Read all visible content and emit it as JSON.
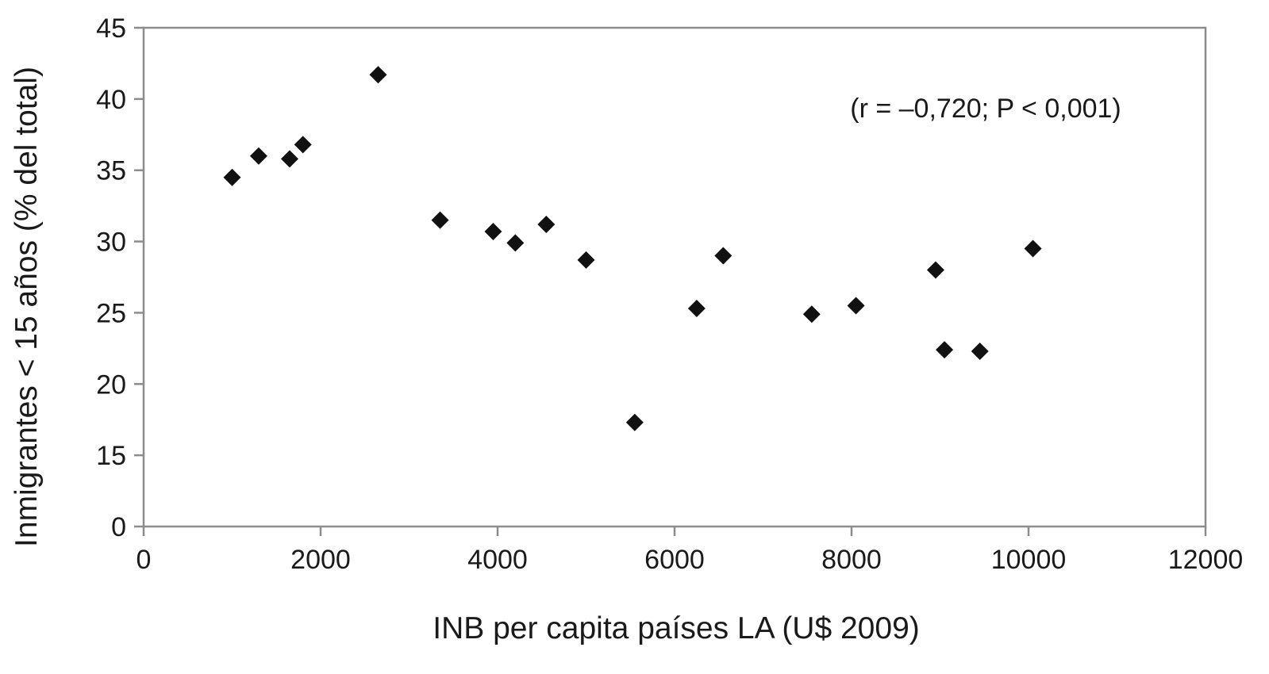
{
  "chart_data": {
    "type": "scatter",
    "title": "",
    "xlabel": "INB per capita países LA (U$ 2009)",
    "ylabel": "Inmigrantes < 15 años (% del total)",
    "annotation": "(r = –0,720; P < 0,001)",
    "xlim": [
      0,
      12000
    ],
    "ylim": [
      0,
      45
    ],
    "x_ticks": [
      0,
      2000,
      4000,
      6000,
      8000,
      10000,
      12000
    ],
    "y_ticks": [
      0,
      15,
      20,
      25,
      30,
      35,
      40,
      45
    ],
    "y_axis_break": "scale jumps from 0 to 15",
    "grid": false,
    "legend": "none",
    "marker": "diamond",
    "marker_color": "#111111",
    "points": [
      {
        "x": 1000,
        "y": 34.5
      },
      {
        "x": 1300,
        "y": 36.0
      },
      {
        "x": 1650,
        "y": 35.8
      },
      {
        "x": 1800,
        "y": 36.8
      },
      {
        "x": 2650,
        "y": 41.7
      },
      {
        "x": 3350,
        "y": 31.5
      },
      {
        "x": 3950,
        "y": 30.7
      },
      {
        "x": 4200,
        "y": 29.9
      },
      {
        "x": 4550,
        "y": 31.2
      },
      {
        "x": 5000,
        "y": 28.7
      },
      {
        "x": 5550,
        "y": 17.3
      },
      {
        "x": 6250,
        "y": 25.3
      },
      {
        "x": 6550,
        "y": 29.0
      },
      {
        "x": 7550,
        "y": 24.9
      },
      {
        "x": 8050,
        "y": 25.5
      },
      {
        "x": 8950,
        "y": 28.0
      },
      {
        "x": 9050,
        "y": 22.4
      },
      {
        "x": 9450,
        "y": 22.3
      },
      {
        "x": 10050,
        "y": 29.5
      }
    ]
  }
}
